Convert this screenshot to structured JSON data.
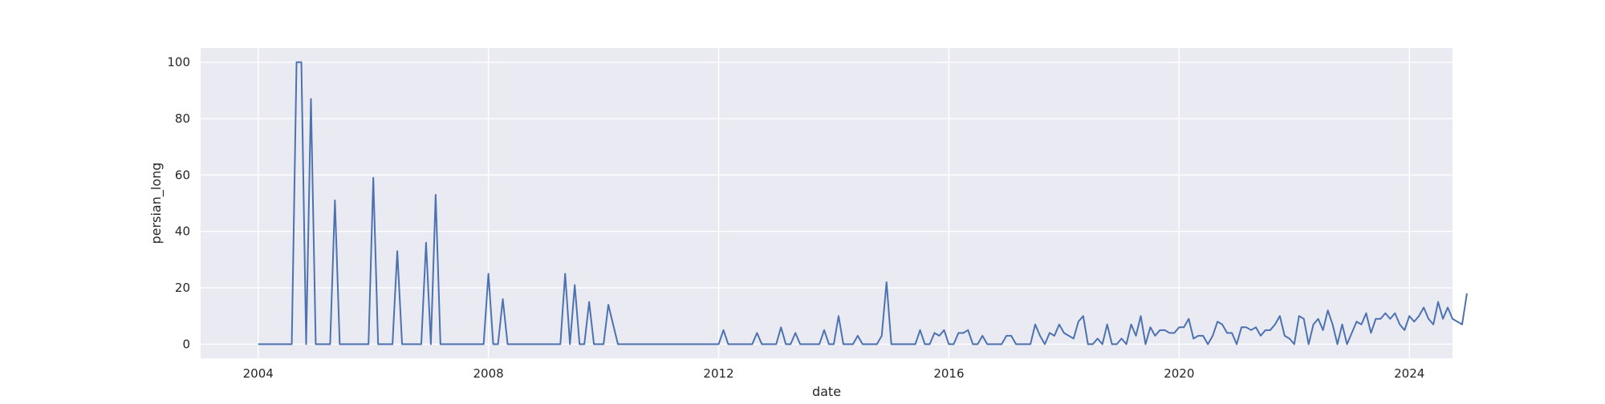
{
  "chart_data": {
    "type": "line",
    "title": "",
    "xlabel": "date",
    "ylabel": "persian_long",
    "xlim": [
      "2003-01-01",
      "2024-10-01"
    ],
    "ylim": [
      -5,
      105
    ],
    "x_ticks": [
      "2004",
      "2008",
      "2012",
      "2016",
      "2020",
      "2024"
    ],
    "y_ticks": [
      0,
      20,
      40,
      60,
      80,
      100
    ],
    "grid": true,
    "legend": "none",
    "colors": {
      "plot_background": "#EAEAF2",
      "grid": "#FFFFFF",
      "line": "#4C72B0",
      "text": "#262626"
    },
    "series": [
      {
        "start": "2004-01",
        "frequency": "monthly",
        "end": "2023-10",
        "values": [
          0,
          0,
          0,
          0,
          0,
          0,
          0,
          0,
          100,
          100,
          0,
          87,
          0,
          0,
          0,
          0,
          51,
          0,
          0,
          0,
          0,
          0,
          0,
          0,
          59,
          0,
          0,
          0,
          0,
          33,
          0,
          0,
          0,
          0,
          0,
          36,
          0,
          53,
          0,
          0,
          0,
          0,
          0,
          0,
          0,
          0,
          0,
          0,
          25,
          0,
          0,
          16,
          0,
          0,
          0,
          0,
          0,
          0,
          0,
          0,
          0,
          0,
          0,
          0,
          25,
          0,
          21,
          0,
          0,
          15,
          0,
          0,
          0,
          14,
          7,
          0,
          0,
          0,
          0,
          0,
          0,
          0,
          0,
          0,
          0,
          0,
          0,
          0,
          0,
          0,
          0,
          0,
          0,
          0,
          0,
          0,
          0,
          5,
          0,
          0,
          0,
          0,
          0,
          0,
          4,
          0,
          0,
          0,
          0,
          6,
          0,
          0,
          4,
          0,
          0,
          0,
          0,
          0,
          5,
          0,
          0,
          10,
          0,
          0,
          0,
          3,
          0,
          0,
          0,
          0,
          3,
          22,
          0,
          0,
          0,
          0,
          0,
          0,
          5,
          0,
          0,
          4,
          3,
          5,
          0,
          0,
          4,
          4,
          5,
          0,
          0,
          3,
          0,
          0,
          0,
          0,
          3,
          3,
          0,
          0,
          0,
          0,
          7,
          3,
          0,
          4,
          3,
          7,
          4,
          3,
          2,
          8,
          10,
          0,
          0,
          2,
          0,
          7,
          0,
          0,
          2,
          0,
          7,
          3,
          10,
          0,
          6,
          3,
          5,
          5,
          4,
          4,
          6,
          6,
          9,
          2,
          3,
          3,
          0,
          3,
          8,
          7,
          4,
          4,
          0,
          6,
          6,
          5,
          6,
          3,
          5,
          5,
          7,
          10,
          3,
          2,
          0,
          10,
          9,
          0,
          7,
          9,
          5,
          12,
          7,
          0,
          7,
          0,
          4,
          8,
          7,
          11,
          4,
          9,
          9,
          11,
          9,
          11,
          7,
          5,
          10,
          8,
          10,
          13,
          9,
          7,
          15,
          9,
          13,
          9,
          8,
          7,
          18
        ]
      }
    ]
  }
}
